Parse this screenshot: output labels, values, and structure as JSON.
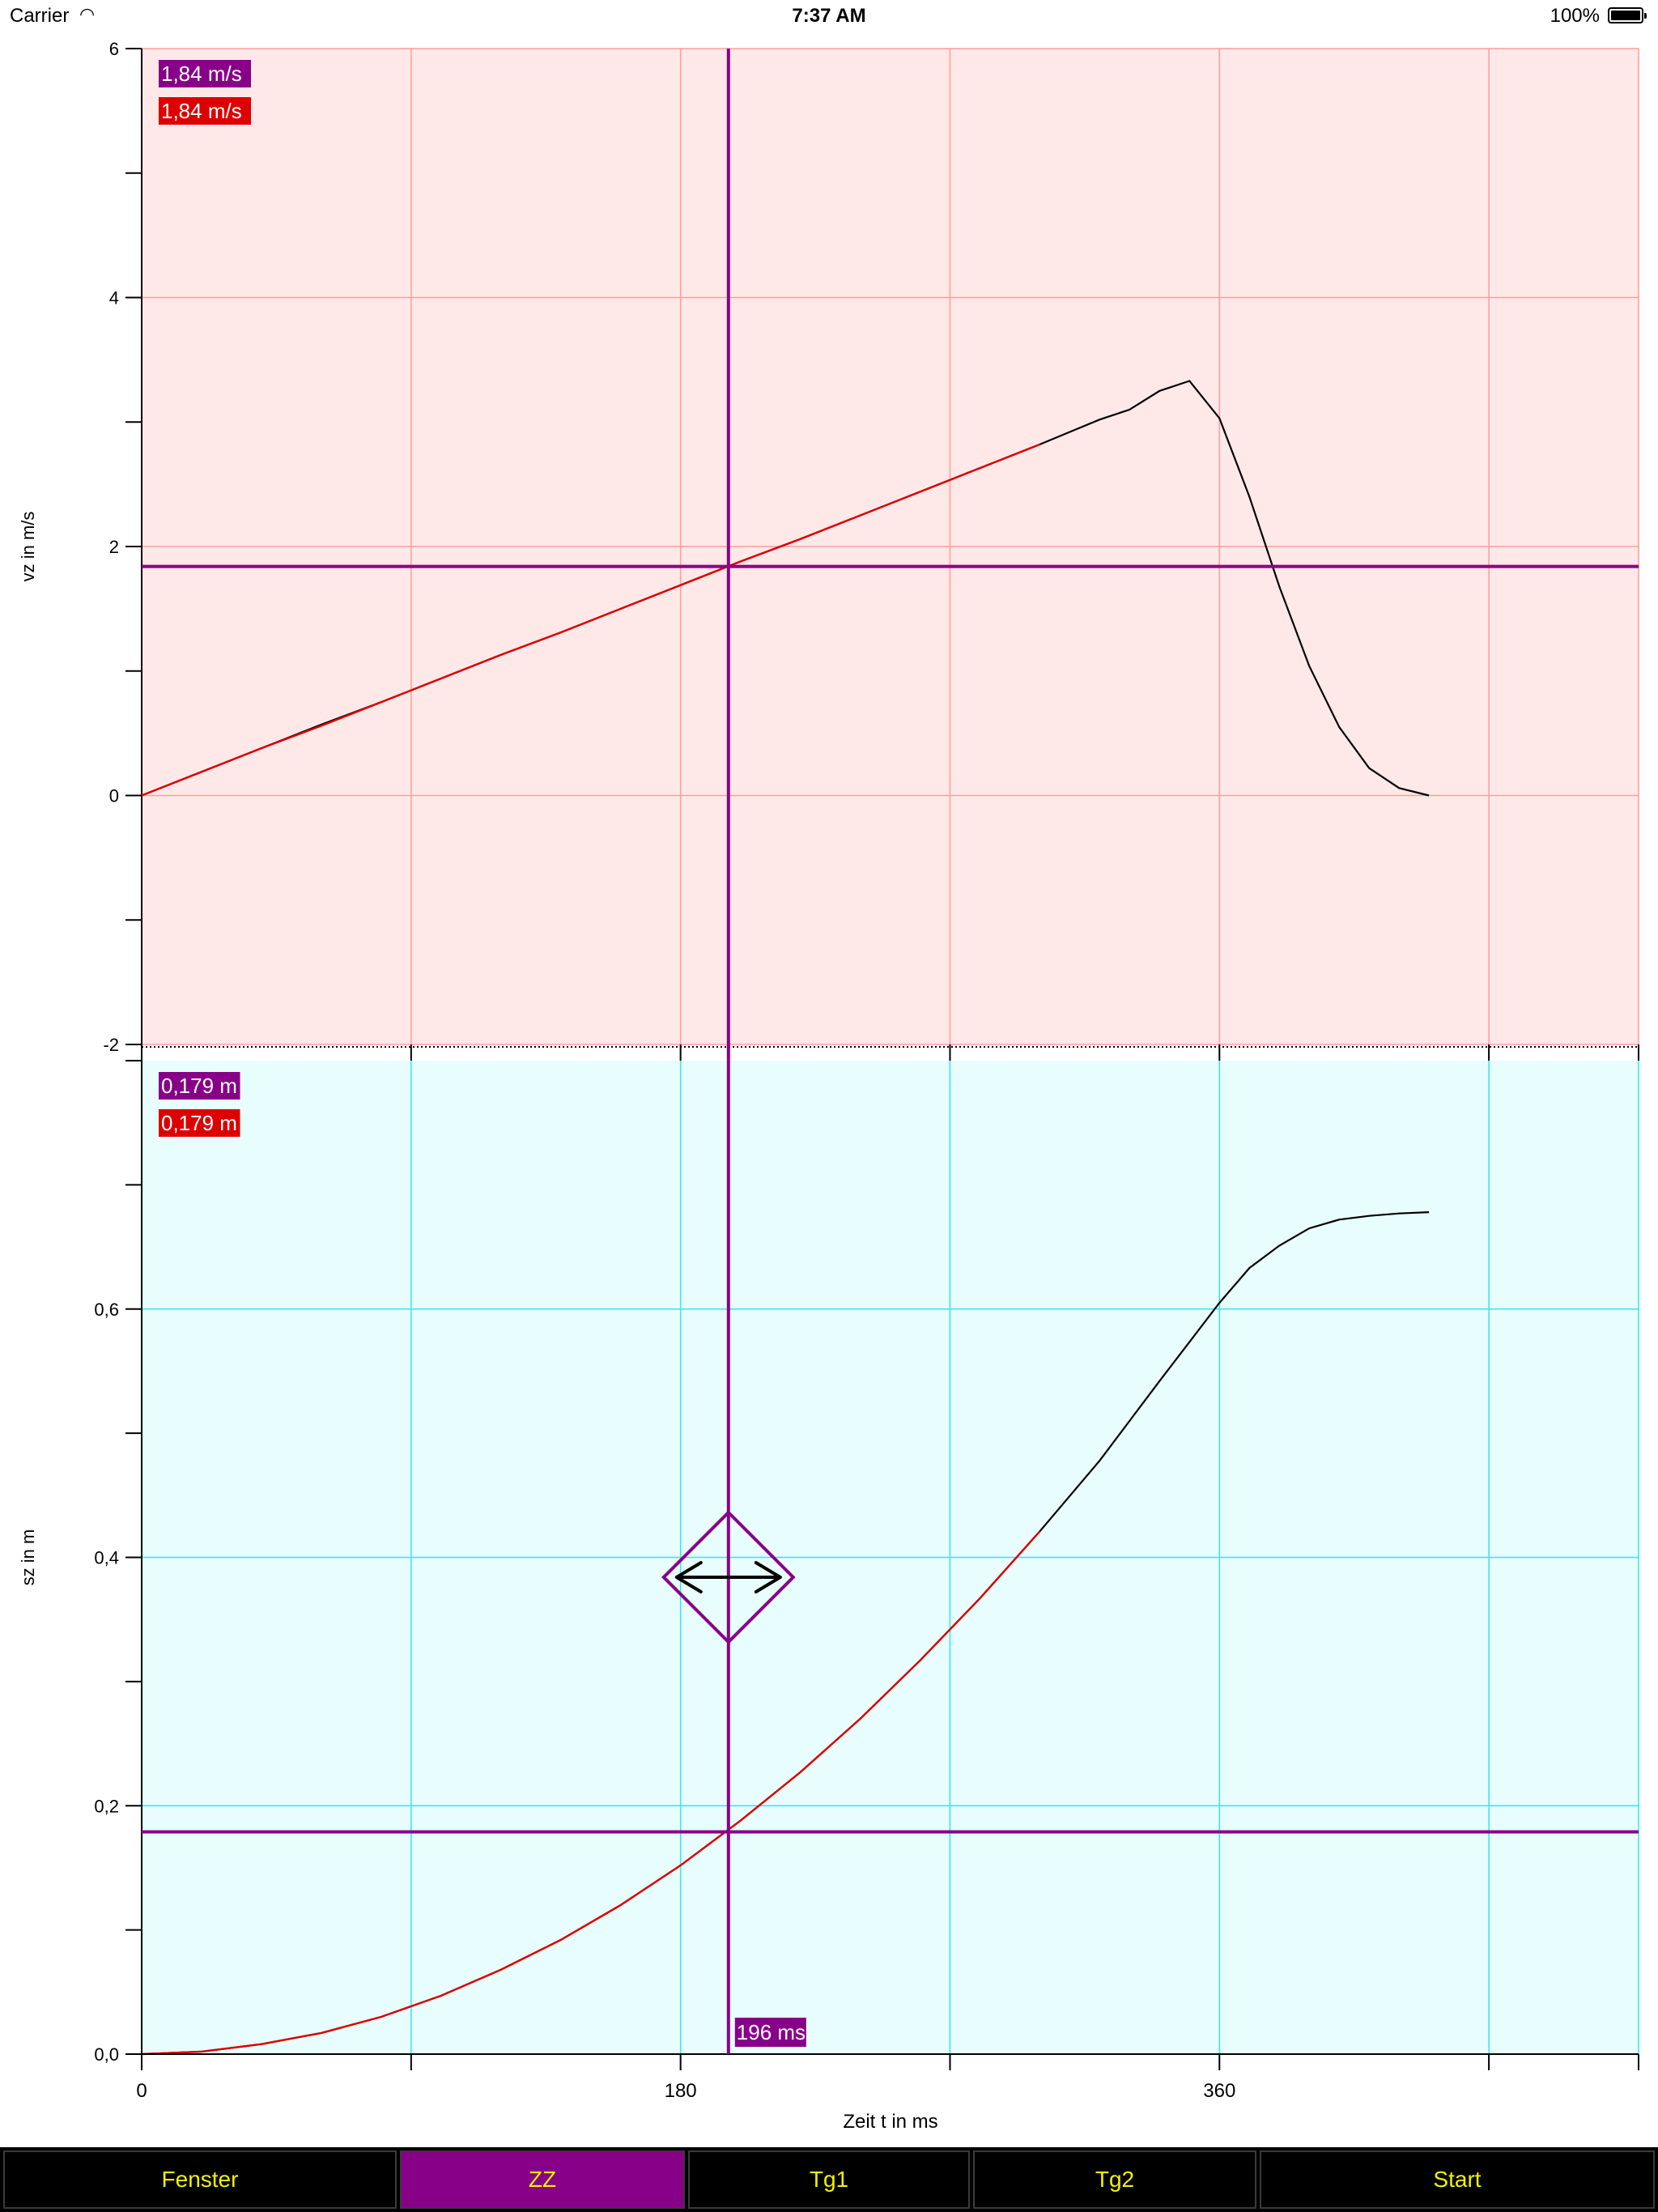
{
  "status_bar": {
    "carrier": "Carrier",
    "time": "7:37 AM",
    "battery": "100%"
  },
  "tabs": [
    {
      "label": "Fenster",
      "active": false
    },
    {
      "label": "ZZ",
      "active": true
    },
    {
      "label": "Tg1",
      "active": false
    },
    {
      "label": "Tg2",
      "active": false
    },
    {
      "label": "Start",
      "active": false
    }
  ],
  "colors": {
    "top_background": "#ffe8e8",
    "top_grid": "#ff9d9d",
    "bottom_background": "#e8fdfd",
    "bottom_grid": "#33e6ee",
    "cursor": "#880088",
    "fit_curve": "#dd0000",
    "data_curve": "#000000",
    "tab_text": "#f2f200"
  },
  "cursor": {
    "t_value": 196,
    "t_label": "196 ms",
    "vz_value": 1.84,
    "sz_value": 0.179,
    "vz_labels": [
      "1,84 m/s",
      "1,84 m/s"
    ],
    "sz_labels": [
      "0,179 m",
      "0,179 m"
    ],
    "handle_icon": "double-arrow-icon"
  },
  "chart_data": [
    {
      "type": "line",
      "ylabel": "vz in m/s",
      "ylim": [
        -2,
        6
      ],
      "y_ticks": [
        -2,
        0,
        2,
        4,
        6
      ],
      "y_tick_labels": [
        "-2",
        "0",
        "2",
        "4",
        "6"
      ],
      "xlim": [
        0,
        500
      ],
      "grid": true,
      "series": [
        {
          "x": [
            0,
            20,
            40,
            60,
            80,
            100,
            120,
            140,
            160,
            180,
            200,
            220,
            240,
            260,
            280,
            300,
            310,
            320,
            330,
            340,
            350,
            360,
            370,
            380,
            390,
            400,
            410,
            420,
            430
          ],
          "y": [
            0,
            0.19,
            0.38,
            0.57,
            0.75,
            0.94,
            1.13,
            1.31,
            1.5,
            1.69,
            1.88,
            2.06,
            2.25,
            2.44,
            2.63,
            2.82,
            2.92,
            3.02,
            3.1,
            3.25,
            3.33,
            3.03,
            2.4,
            1.68,
            1.04,
            0.55,
            0.22,
            0.06,
            0.0
          ]
        },
        {
          "x": [
            0,
            20,
            40,
            60,
            80,
            100,
            120,
            140,
            160,
            180,
            200,
            220,
            240,
            260,
            280,
            300
          ],
          "y": [
            0,
            0.19,
            0.38,
            0.56,
            0.75,
            0.94,
            1.13,
            1.31,
            1.5,
            1.69,
            1.88,
            2.06,
            2.25,
            2.44,
            2.63,
            2.82
          ]
        }
      ]
    },
    {
      "type": "line",
      "ylabel": "sz in m",
      "xlabel": "Zeit t in ms",
      "ylim": [
        0,
        0.8
      ],
      "y_ticks": [
        0,
        0.2,
        0.4,
        0.6
      ],
      "y_tick_labels": [
        "0,0",
        "0,2",
        "0,4",
        "0,6"
      ],
      "xlim": [
        0,
        500
      ],
      "x_ticks": [
        0,
        180,
        360
      ],
      "x_tick_labels": [
        "0",
        "180",
        "360"
      ],
      "grid": true,
      "series": [
        {
          "x": [
            0,
            20,
            40,
            60,
            80,
            100,
            120,
            140,
            160,
            180,
            200,
            220,
            240,
            260,
            280,
            300,
            320,
            340,
            360,
            370,
            380,
            390,
            400,
            410,
            420,
            430
          ],
          "y": [
            0,
            0.002,
            0.008,
            0.017,
            0.03,
            0.047,
            0.068,
            0.092,
            0.12,
            0.152,
            0.188,
            0.227,
            0.27,
            0.317,
            0.367,
            0.421,
            0.478,
            0.542,
            0.605,
            0.633,
            0.651,
            0.665,
            0.672,
            0.675,
            0.677,
            0.678
          ]
        },
        {
          "x": [
            0,
            20,
            40,
            60,
            80,
            100,
            120,
            140,
            160,
            180,
            200,
            220,
            240,
            260,
            280,
            300
          ],
          "y": [
            0,
            0.002,
            0.008,
            0.017,
            0.03,
            0.047,
            0.068,
            0.092,
            0.12,
            0.152,
            0.188,
            0.227,
            0.27,
            0.317,
            0.367,
            0.421
          ]
        }
      ]
    }
  ]
}
